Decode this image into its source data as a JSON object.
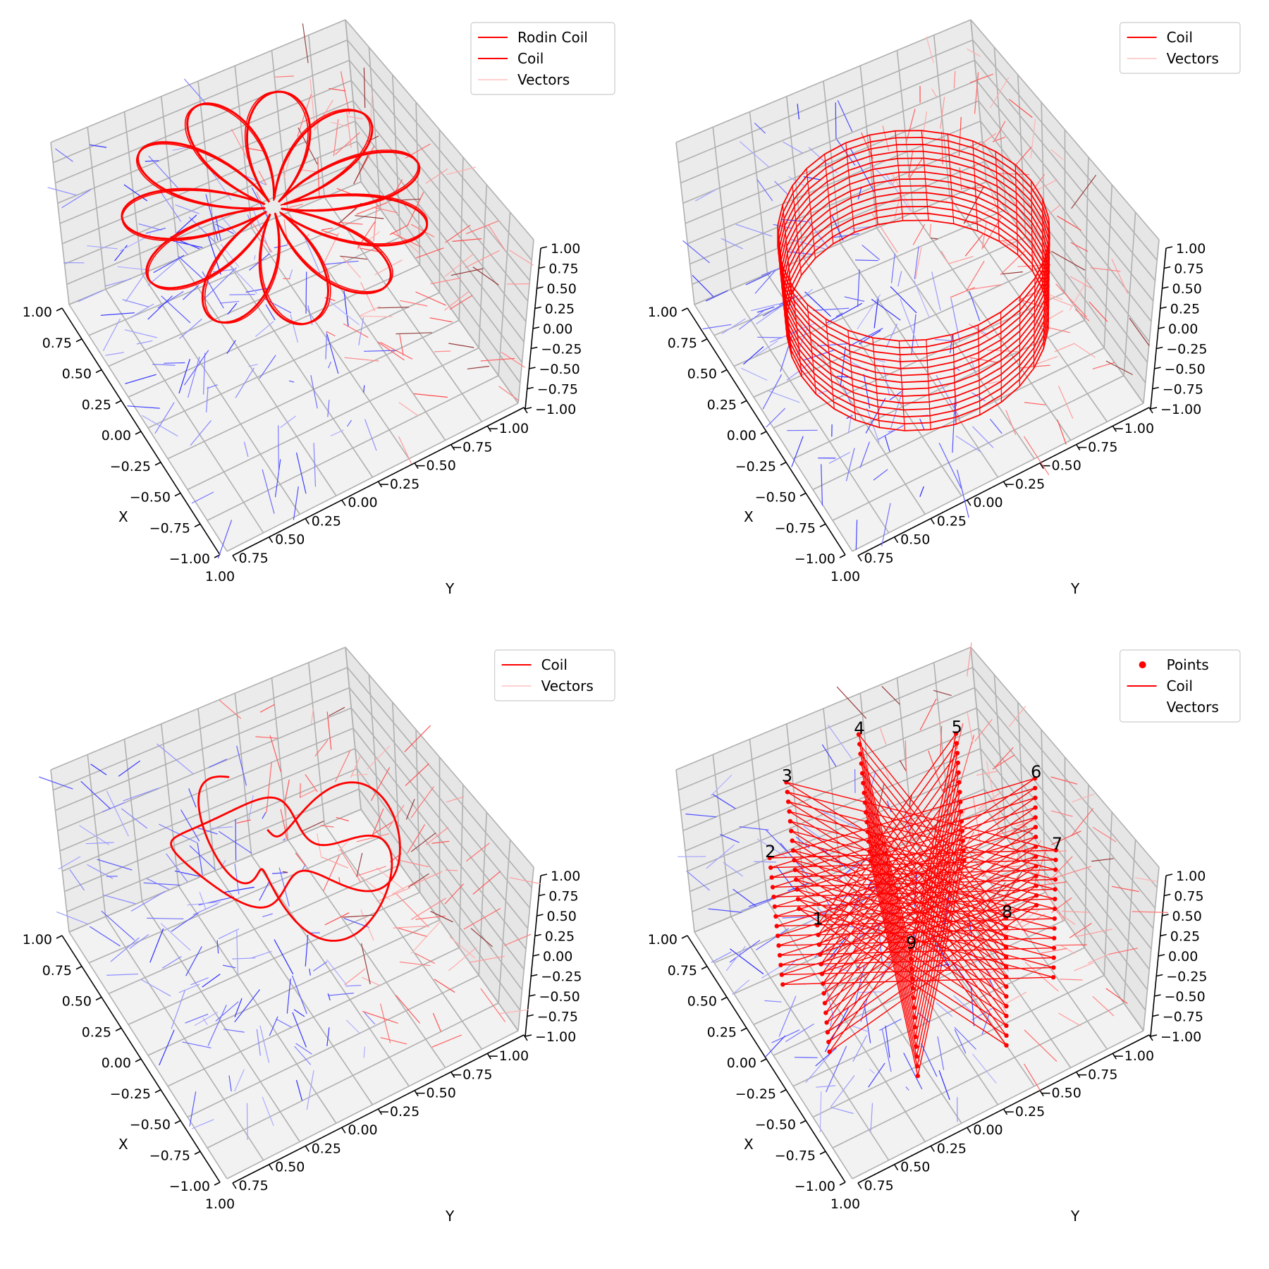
{
  "chart_data": [
    {
      "type": "3d-line-quiver",
      "shape": "rodin",
      "axis_labels": {
        "x": "X",
        "y": "Y"
      },
      "x_ticks": [
        "1.00",
        "0.75",
        "0.50",
        "0.25",
        "0.00",
        "−0.25",
        "−0.50",
        "−0.75",
        "−1.00"
      ],
      "y_ticks": [
        "−1.00",
        "−0.75",
        "−0.50",
        "−0.25",
        "0.00",
        "0.25",
        "0.50",
        "0.75",
        "1.00"
      ],
      "z_ticks": [
        "−1.00",
        "−0.75",
        "−0.50",
        "−0.25",
        "0.00",
        "0.25",
        "0.50",
        "0.75",
        "1.00"
      ],
      "xlim": [
        -1,
        1
      ],
      "ylim": [
        -1,
        1
      ],
      "zlim": [
        -1,
        1
      ],
      "legend": [
        "Rodin Coil",
        "Coil",
        "Vectors"
      ],
      "legend_location": "top-right",
      "series": [
        {
          "name": "Rodin Coil",
          "color": "#ff0000"
        },
        {
          "name": "Coil",
          "color": "#ff0000"
        },
        {
          "name": "Vectors",
          "color": "#ffb3b3"
        }
      ]
    },
    {
      "type": "3d-line-quiver",
      "shape": "cylinder",
      "axis_labels": {
        "x": "X",
        "y": "Y"
      },
      "x_ticks": [
        "1.00",
        "0.75",
        "0.50",
        "0.25",
        "0.00",
        "−0.25",
        "−0.50",
        "−0.75",
        "−1.00"
      ],
      "y_ticks": [
        "−1.00",
        "−0.75",
        "−0.50",
        "−0.25",
        "0.00",
        "0.25",
        "0.50",
        "0.75",
        "1.00"
      ],
      "z_ticks": [
        "−1.00",
        "−0.75",
        "−0.50",
        "−0.25",
        "0.00",
        "0.25",
        "0.50",
        "0.75",
        "1.00"
      ],
      "xlim": [
        -1,
        1
      ],
      "ylim": [
        -1,
        1
      ],
      "zlim": [
        -1,
        1
      ],
      "legend": [
        "Coil",
        "Vectors"
      ],
      "legend_location": "top-right",
      "series": [
        {
          "name": "Coil",
          "color": "#ff0000"
        },
        {
          "name": "Vectors",
          "color": "#ffb3b3"
        }
      ]
    },
    {
      "type": "3d-line-quiver",
      "shape": "torus-knot",
      "axis_labels": {
        "x": "X",
        "y": "Y"
      },
      "x_ticks": [
        "1.00",
        "0.75",
        "0.50",
        "0.25",
        "0.00",
        "−0.25",
        "−0.50",
        "−0.75",
        "−1.00"
      ],
      "y_ticks": [
        "−1.00",
        "−0.75",
        "−0.50",
        "−0.25",
        "0.00",
        "0.25",
        "0.50",
        "0.75",
        "1.00"
      ],
      "z_ticks": [
        "−1.00",
        "−0.75",
        "−0.50",
        "−0.25",
        "0.00",
        "0.25",
        "0.50",
        "0.75",
        "1.00"
      ],
      "xlim": [
        -1,
        1
      ],
      "ylim": [
        -1,
        1
      ],
      "zlim": [
        -1,
        1
      ],
      "legend": [
        "Coil",
        "Vectors"
      ],
      "legend_location": "top-right",
      "series": [
        {
          "name": "Coil",
          "color": "#ff0000"
        },
        {
          "name": "Vectors",
          "color": "#ffb3b3"
        }
      ]
    },
    {
      "type": "3d-line-quiver",
      "shape": "star-polygon",
      "axis_labels": {
        "x": "X",
        "y": "Y"
      },
      "x_ticks": [
        "1.00",
        "0.75",
        "0.50",
        "0.25",
        "0.00",
        "−0.25",
        "−0.50",
        "−0.75",
        "−1.00"
      ],
      "y_ticks": [
        "−1.00",
        "−0.75",
        "−0.50",
        "−0.25",
        "0.00",
        "0.25",
        "0.50",
        "0.75",
        "1.00"
      ],
      "z_ticks": [
        "−1.00",
        "−0.75",
        "−0.50",
        "−0.25",
        "0.00",
        "0.25",
        "0.50",
        "0.75",
        "1.00"
      ],
      "xlim": [
        -1,
        1
      ],
      "ylim": [
        -1,
        1
      ],
      "zlim": [
        -1,
        1
      ],
      "legend": [
        "Points",
        "Coil",
        "Vectors"
      ],
      "legend_location": "top-right",
      "point_labels": [
        "1",
        "2",
        "3",
        "4",
        "5",
        "6",
        "7",
        "8",
        "9"
      ],
      "series": [
        {
          "name": "Points",
          "color": "#ff0000"
        },
        {
          "name": "Coil",
          "color": "#ff0000"
        },
        {
          "name": "Vectors",
          "color": "#ffffff"
        }
      ]
    }
  ]
}
